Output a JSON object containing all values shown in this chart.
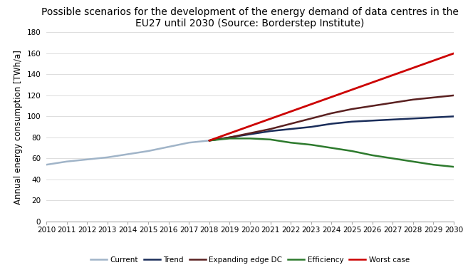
{
  "title": "Possible scenarios for the development of the energy demand of data centres in the\nEU27 until 2030 (Source: Borderstep Institute)",
  "ylabel": "Annual energy consumption [TWh/a]",
  "xlim": [
    2010,
    2030
  ],
  "ylim": [
    0,
    180
  ],
  "yticks": [
    0,
    20,
    40,
    60,
    80,
    100,
    120,
    140,
    160,
    180
  ],
  "xticks": [
    2010,
    2011,
    2012,
    2013,
    2014,
    2015,
    2016,
    2017,
    2018,
    2019,
    2020,
    2021,
    2022,
    2023,
    2024,
    2025,
    2026,
    2027,
    2028,
    2029,
    2030
  ],
  "series": {
    "Current": {
      "x": [
        2010,
        2011,
        2012,
        2013,
        2014,
        2015,
        2016,
        2017,
        2018
      ],
      "y": [
        54,
        57,
        59,
        61,
        64,
        67,
        71,
        75,
        77
      ],
      "color": "#a0b4c8",
      "linewidth": 1.8
    },
    "Trend": {
      "x": [
        2018,
        2019,
        2020,
        2021,
        2022,
        2023,
        2024,
        2025,
        2026,
        2027,
        2028,
        2029,
        2030
      ],
      "y": [
        77,
        80,
        83,
        86,
        88,
        90,
        93,
        95,
        96,
        97,
        98,
        99,
        100
      ],
      "color": "#1a2d5a",
      "linewidth": 1.8
    },
    "Expanding edge DC": {
      "x": [
        2018,
        2019,
        2020,
        2021,
        2022,
        2023,
        2024,
        2025,
        2026,
        2027,
        2028,
        2029,
        2030
      ],
      "y": [
        77,
        80,
        84,
        88,
        93,
        98,
        103,
        107,
        110,
        113,
        116,
        118,
        120
      ],
      "color": "#5a2020",
      "linewidth": 1.8
    },
    "Efficiency": {
      "x": [
        2018,
        2019,
        2020,
        2021,
        2022,
        2023,
        2024,
        2025,
        2026,
        2027,
        2028,
        2029,
        2030
      ],
      "y": [
        77,
        79,
        79,
        78,
        75,
        73,
        70,
        67,
        63,
        60,
        57,
        54,
        52
      ],
      "color": "#2d7a2d",
      "linewidth": 1.8
    },
    "Worst case": {
      "x": [
        2018,
        2030
      ],
      "y": [
        77,
        160
      ],
      "color": "#cc0000",
      "linewidth": 2.0
    }
  },
  "legend_order": [
    "Current",
    "Trend",
    "Expanding edge DC",
    "Efficiency",
    "Worst case"
  ],
  "background_color": "#ffffff",
  "title_fontsize": 10,
  "label_fontsize": 8.5,
  "tick_fontsize": 7.5
}
